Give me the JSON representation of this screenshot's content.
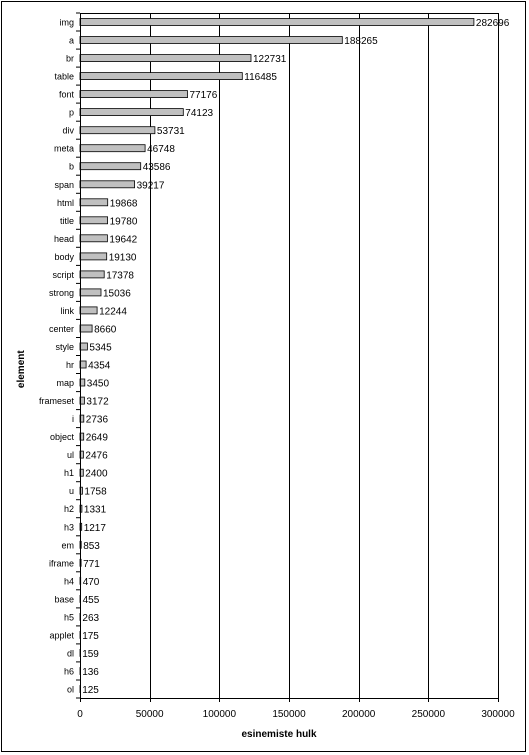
{
  "chart_data": {
    "type": "bar",
    "orientation": "horizontal",
    "categories": [
      "img",
      "a",
      "br",
      "table",
      "font",
      "p",
      "div",
      "meta",
      "b",
      "span",
      "html",
      "title",
      "head",
      "body",
      "script",
      "strong",
      "link",
      "center",
      "style",
      "hr",
      "map",
      "frameset",
      "i",
      "object",
      "ul",
      "h1",
      "u",
      "h2",
      "h3",
      "em",
      "iframe",
      "h4",
      "base",
      "h5",
      "applet",
      "dl",
      "h6",
      "ol"
    ],
    "values": [
      282696,
      188265,
      122731,
      116485,
      77176,
      74123,
      53731,
      46748,
      43586,
      39217,
      19868,
      19780,
      19642,
      19130,
      17378,
      15036,
      12244,
      8660,
      5345,
      4354,
      3450,
      3172,
      2736,
      2649,
      2476,
      2400,
      1758,
      1331,
      1217,
      853,
      771,
      470,
      455,
      263,
      175,
      159,
      136,
      125
    ],
    "value_labels": [
      "282696",
      "188265",
      "122731",
      "116485",
      "77176",
      "74123",
      "53731",
      "46748",
      "43586",
      "39217",
      "19868",
      "19780",
      "19642",
      "19130",
      "17378",
      "15036",
      "12244",
      "8660",
      "5345",
      "4354",
      "3450",
      "3172",
      "2736",
      "2649",
      "2476",
      "2400",
      "1758",
      "1331",
      "1217",
      "853",
      "771",
      "470",
      "455",
      "263",
      "175",
      "159",
      "136",
      "125"
    ],
    "xlabel": "esinemiste hulk",
    "ylabel": "element",
    "xlim": [
      0,
      300000
    ],
    "xticks": [
      0,
      50000,
      100000,
      150000,
      200000,
      250000,
      300000
    ],
    "xtick_labels": [
      "0",
      "50000",
      "100000",
      "150000",
      "200000",
      "250000",
      "300000"
    ],
    "grid": "vertical major gridlines",
    "legend": "none",
    "colors": {
      "bar_fill": "#c0c0c0",
      "bar_stroke": "#000000",
      "grid": "#000000",
      "background": "#ffffff"
    }
  }
}
